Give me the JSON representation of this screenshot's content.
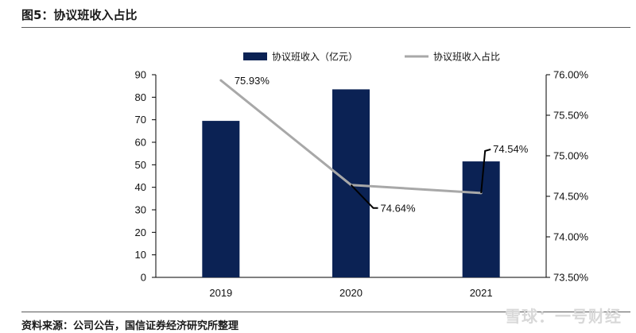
{
  "figure_title": "图5：协议班收入占比",
  "source_note": "资料来源：公司公告，国信证券经济研究所整理",
  "watermark": "雪球：一号财经",
  "colors": {
    "bar": "#0b2254",
    "line": "#a8a8a8",
    "axis": "#000000",
    "text": "#111111"
  },
  "chart_data": {
    "type": "bar",
    "title": "",
    "xlabel": "",
    "ylabel": "",
    "categories": [
      "2019",
      "2020",
      "2021"
    ],
    "grid": false,
    "legend_position": "top",
    "series": [
      {
        "name": "协议班收入（亿元）",
        "type": "bar",
        "axis": "left",
        "values": [
          69.5,
          83.5,
          51.5
        ]
      },
      {
        "name": "协议班收入占比",
        "type": "line",
        "axis": "right",
        "values": [
          75.93,
          74.64,
          74.54
        ],
        "value_labels": [
          "75.93%",
          "74.64%",
          "74.54%"
        ]
      }
    ],
    "left_axis": {
      "ylim": [
        0,
        90
      ],
      "ticks": [
        "0",
        "10",
        "20",
        "30",
        "40",
        "50",
        "60",
        "70",
        "80",
        "90"
      ]
    },
    "right_axis": {
      "ylim": [
        73.5,
        76.0
      ],
      "ticks": [
        "73.50%",
        "74.00%",
        "74.50%",
        "75.00%",
        "75.50%",
        "76.00%"
      ]
    }
  }
}
